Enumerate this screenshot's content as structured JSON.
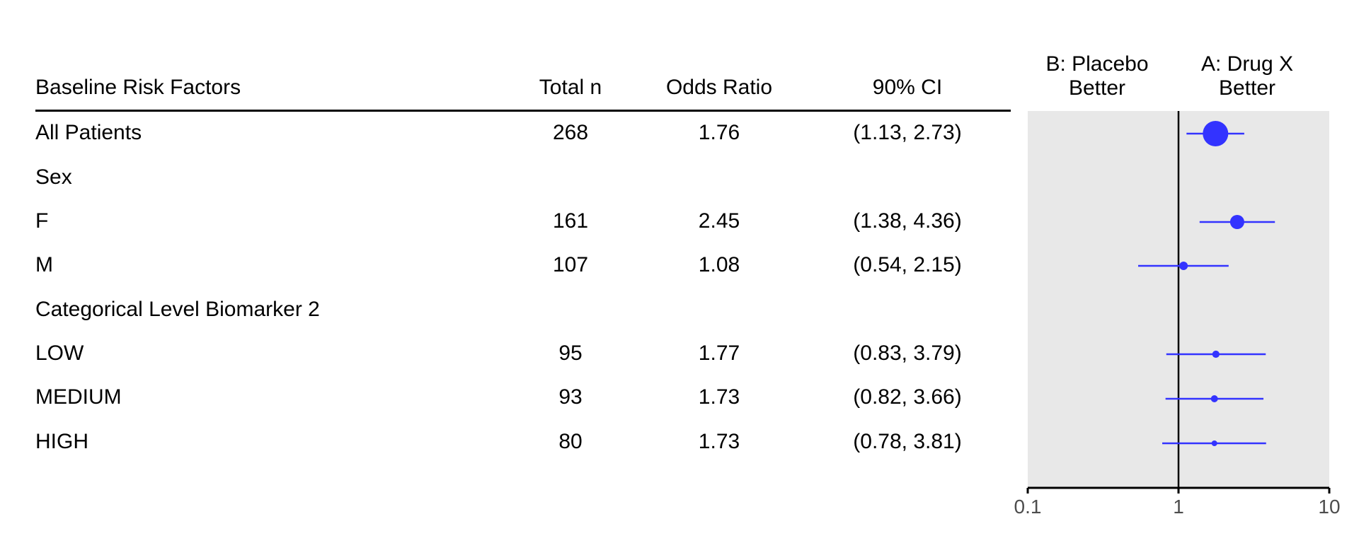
{
  "table": {
    "headers": {
      "factor": "Baseline Risk Factors",
      "total_n": "Total n",
      "odds_ratio": "Odds Ratio",
      "ci": "90% CI"
    },
    "rows": [
      {
        "label": "All Patients",
        "n": "268",
        "or": "1.76",
        "ci": "(1.13, 2.73)"
      },
      {
        "label": "Sex",
        "n": "",
        "or": "",
        "ci": ""
      },
      {
        "label": "F",
        "n": "161",
        "or": "2.45",
        "ci": "(1.38, 4.36)"
      },
      {
        "label": "M",
        "n": "107",
        "or": "1.08",
        "ci": "(0.54, 2.15)"
      },
      {
        "label": "Categorical Level Biomarker 2",
        "n": "",
        "or": "",
        "ci": ""
      },
      {
        "label": "LOW",
        "n": "95",
        "or": "1.77",
        "ci": "(0.83, 3.79)"
      },
      {
        "label": "MEDIUM",
        "n": "93",
        "or": "1.73",
        "ci": "(0.82, 3.66)"
      },
      {
        "label": "HIGH",
        "n": "80",
        "or": "1.73",
        "ci": "(0.78, 3.81)"
      }
    ]
  },
  "forest": {
    "left_header_line1": "B: Placebo",
    "left_header_line2": "Better",
    "right_header_line1": "A: Drug X",
    "right_header_line2": "Better"
  },
  "colors": {
    "point": "#3333ff",
    "panel_bg": "#e8e8e8",
    "axis": "#000000",
    "tick_label": "#4d4d4d"
  },
  "chart_data": {
    "type": "scatter",
    "x_scale": "log",
    "xlim": [
      0.1,
      10
    ],
    "ticks": [
      0.1,
      1,
      10
    ],
    "tick_labels": [
      "0.1",
      "1",
      "10"
    ],
    "reference_line": 1,
    "points": [
      {
        "label": "All Patients",
        "or": 1.76,
        "lower": 1.13,
        "upper": 2.73,
        "n": 268
      },
      {
        "label": "F",
        "or": 2.45,
        "lower": 1.38,
        "upper": 4.36,
        "n": 161
      },
      {
        "label": "M",
        "or": 1.08,
        "lower": 0.54,
        "upper": 2.15,
        "n": 107
      },
      {
        "label": "LOW",
        "or": 1.77,
        "lower": 0.83,
        "upper": 3.79,
        "n": 95
      },
      {
        "label": "MEDIUM",
        "or": 1.73,
        "lower": 0.82,
        "upper": 3.66,
        "n": 93
      },
      {
        "label": "HIGH",
        "or": 1.73,
        "lower": 0.78,
        "upper": 3.81,
        "n": 80
      }
    ]
  }
}
